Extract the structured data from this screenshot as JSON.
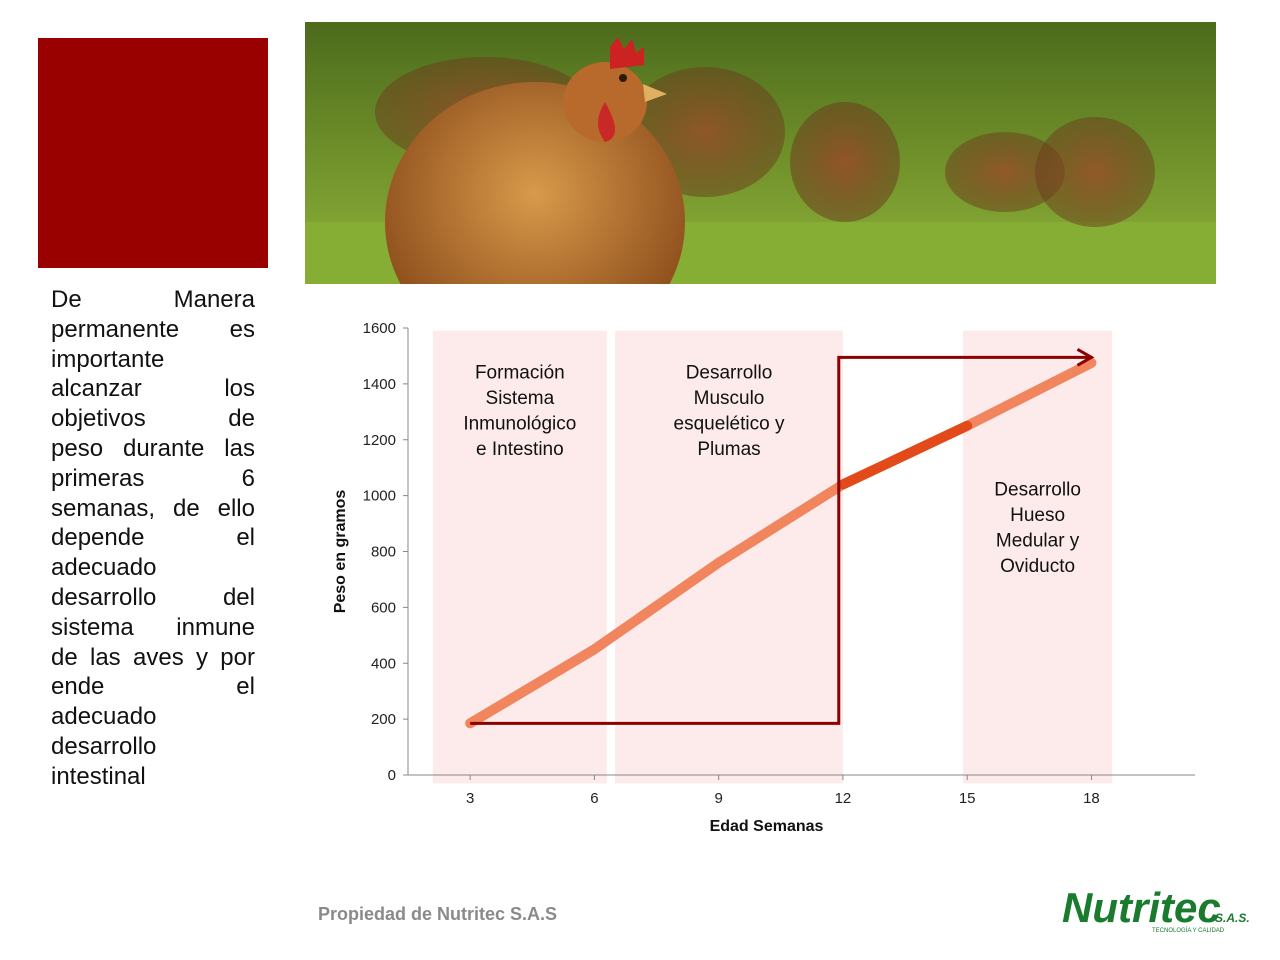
{
  "side_text": [
    "De Manera",
    "permanente es",
    "importante",
    "alcanzar los",
    "objetivos de",
    "peso durante las",
    "primeras 6",
    "semanas, de ello",
    "depende el",
    "adecuado",
    "desarrollo del",
    "sistema inmune",
    "de las aves y por",
    "ende el",
    "adecuado",
    "desarrollo",
    "intestinal"
  ],
  "photo": {
    "icon": "hens-photo"
  },
  "footer": "Propiedad de Nutritec S.A.S",
  "logo": {
    "main": "Nutritec",
    "suffix": "S.A.S.",
    "tagline": "TECNOLOGÍA Y CALIDAD",
    "color": "#1a7a2e"
  },
  "chart_data": {
    "type": "line",
    "title": "",
    "xlabel": "Edad  Semanas",
    "ylabel": "Peso en gramos",
    "xlim": [
      1.5,
      20.5
    ],
    "ylim": [
      0,
      1600
    ],
    "x_ticks": [
      3,
      6,
      9,
      12,
      15,
      18
    ],
    "y_ticks": [
      0,
      200,
      400,
      600,
      800,
      1000,
      1200,
      1400,
      1600
    ],
    "series": [
      {
        "x": [
          3,
          6,
          9,
          12,
          15,
          18
        ],
        "values": [
          185,
          450,
          760,
          1040,
          1250,
          1475
        ]
      }
    ],
    "bands": [
      {
        "from": 2.1,
        "to": 6.3,
        "label": [
          "Formación",
          "Sistema",
          "Inmunológico",
          "e Intestino"
        ]
      },
      {
        "from": 6.5,
        "to": 12.0,
        "label": [
          "Desarrollo",
          "Musculo",
          "esquelético y",
          "Plumas"
        ]
      },
      {
        "from": 14.9,
        "to": 18.5,
        "label": [
          "Desarrollo",
          "Hueso",
          "Medular y",
          "Oviducto"
        ]
      }
    ],
    "arrow_path": [
      [
        3,
        185
      ],
      [
        11.9,
        185
      ],
      [
        11.9,
        1495
      ],
      [
        18,
        1495
      ]
    ],
    "colors": {
      "line": "#f0855e",
      "line_dark": "#e24a1a",
      "band": "#fdeaea",
      "arrow": "#8b0000",
      "axis": "#888888"
    }
  }
}
